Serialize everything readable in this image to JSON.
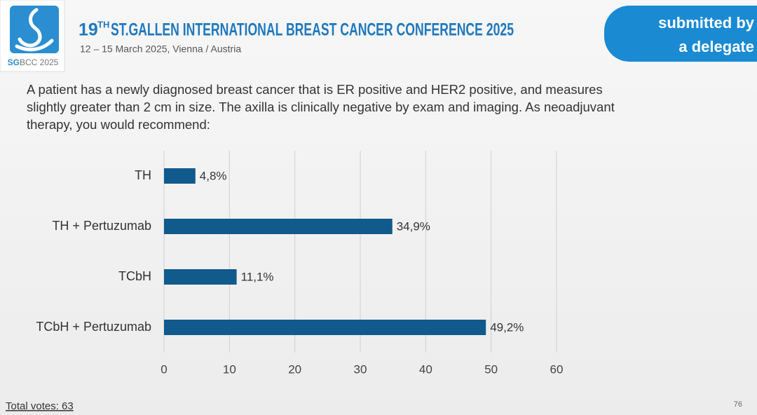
{
  "logo": {
    "strong": "SG",
    "rest": "BCC 2025"
  },
  "conference": {
    "number": "19",
    "suffix": "TH",
    "name": "ST.GALLEN INTERNATIONAL BREAST CANCER CONFERENCE 2025",
    "dates": "12 – 15 March 2025, Vienna / Austria"
  },
  "badge": {
    "lines": [
      "submitted by",
      "a delegate"
    ]
  },
  "question": {
    "lines": [
      "A patient has a newly diagnosed breast cancer that is ER positive and HER2 positive, and measures",
      "slightly greater than 2 cm in size.  The axilla is clinically negative by exam and imaging. As neoadjuvant",
      "therapy, you would recommend:"
    ]
  },
  "footer": {
    "votes": "Total votes: 63",
    "page": "76"
  },
  "chart_data": {
    "type": "hbar",
    "categories": [
      "TH",
      "TH + Pertuzumab",
      "TCbH",
      "TCbH + Pertuzumab"
    ],
    "values": [
      4.8,
      34.9,
      11.1,
      49.2
    ],
    "value_labels": [
      "4,8%",
      "34,9%",
      "11,1%",
      "49,2%"
    ],
    "color": "#115a8c",
    "xlim": [
      0,
      60
    ],
    "xticks": [
      0,
      10,
      20,
      30,
      40,
      50,
      60
    ],
    "grid": true
  }
}
